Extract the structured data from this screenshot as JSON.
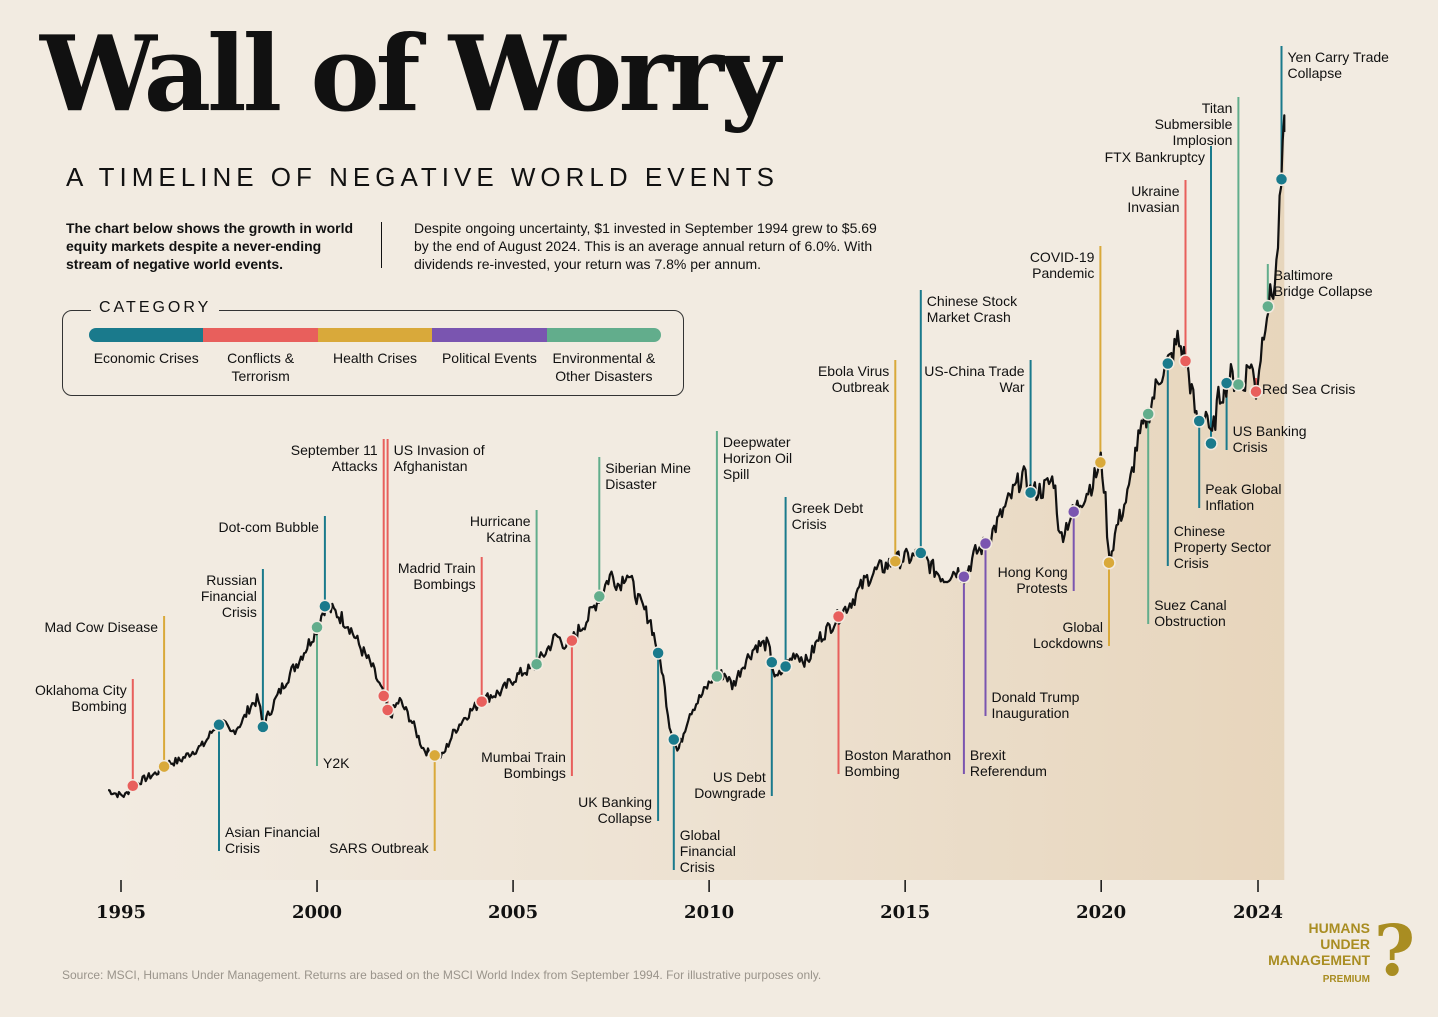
{
  "header": {
    "title": "Wall of Worry",
    "subtitle": "A TIMELINE OF NEGATIVE WORLD EVENTS",
    "intro_bold": "The chart below shows the growth in world equity markets despite a never-ending stream of negative world events.",
    "intro_text": "Despite ongoing uncertainty, $1 invested in September 1994 grew to $5.69 by the end of August 2024. This is an average annual return of 6.0%. With dividends re-invested, your return was 7.8% per annum."
  },
  "legend": {
    "title": "CATEGORY",
    "categories": [
      {
        "key": "economic",
        "label": "Economic Crises",
        "color": "#1a7a8c"
      },
      {
        "key": "conflict",
        "label": "Conflicts & Terrorism",
        "color": "#e85f5c"
      },
      {
        "key": "health",
        "label": "Health Crises",
        "color": "#d9a93a"
      },
      {
        "key": "political",
        "label": "Political Events",
        "color": "#7a55b0"
      },
      {
        "key": "environmental",
        "label": "Environmental & Other Disasters",
        "color": "#62ad8c"
      }
    ]
  },
  "chart_data": {
    "type": "line",
    "title": "Wall of Worry",
    "xlim": [
      1994.6,
      2024.7
    ],
    "xticks": [
      "1995",
      "2000",
      "2005",
      "2010",
      "2015",
      "2020",
      "2024"
    ],
    "xtick_values": [
      1995,
      2000,
      2005,
      2010,
      2015,
      2020,
      2024
    ],
    "y_axis_shown": false,
    "start_date": "September 1994",
    "end_value": 5.69,
    "series": [
      {
        "points": [
          [
            1994.67,
            1.0
          ],
          [
            1994.9,
            0.97
          ],
          [
            1995.1,
            0.96
          ],
          [
            1995.3,
            1.03
          ],
          [
            1995.6,
            1.08
          ],
          [
            1995.9,
            1.12
          ],
          [
            1996.2,
            1.19
          ],
          [
            1996.5,
            1.21
          ],
          [
            1996.8,
            1.27
          ],
          [
            1997.1,
            1.32
          ],
          [
            1997.4,
            1.45
          ],
          [
            1997.6,
            1.48
          ],
          [
            1997.8,
            1.4
          ],
          [
            1998.1,
            1.49
          ],
          [
            1998.3,
            1.6
          ],
          [
            1998.5,
            1.65
          ],
          [
            1998.62,
            1.45
          ],
          [
            1998.9,
            1.62
          ],
          [
            1999.2,
            1.78
          ],
          [
            1999.5,
            1.91
          ],
          [
            1999.8,
            2.05
          ],
          [
            2000.0,
            2.16
          ],
          [
            2000.2,
            2.31
          ],
          [
            2000.5,
            2.26
          ],
          [
            2000.8,
            2.18
          ],
          [
            2001.1,
            2.02
          ],
          [
            2001.4,
            1.88
          ],
          [
            2001.7,
            1.67
          ],
          [
            2001.85,
            1.52
          ],
          [
            2002.1,
            1.64
          ],
          [
            2002.4,
            1.5
          ],
          [
            2002.7,
            1.3
          ],
          [
            2002.9,
            1.25
          ],
          [
            2003.2,
            1.24
          ],
          [
            2003.5,
            1.42
          ],
          [
            2003.8,
            1.53
          ],
          [
            2004.1,
            1.61
          ],
          [
            2004.4,
            1.67
          ],
          [
            2004.7,
            1.7
          ],
          [
            2005.0,
            1.79
          ],
          [
            2005.3,
            1.85
          ],
          [
            2005.5,
            1.86
          ],
          [
            2005.8,
            1.97
          ],
          [
            2006.1,
            2.1
          ],
          [
            2006.4,
            2.02
          ],
          [
            2006.6,
            2.11
          ],
          [
            2006.9,
            2.22
          ],
          [
            2007.2,
            2.38
          ],
          [
            2007.5,
            2.54
          ],
          [
            2007.7,
            2.46
          ],
          [
            2007.9,
            2.56
          ],
          [
            2008.2,
            2.35
          ],
          [
            2008.5,
            2.21
          ],
          [
            2008.8,
            1.86
          ],
          [
            2009.0,
            1.45
          ],
          [
            2009.2,
            1.27
          ],
          [
            2009.5,
            1.55
          ],
          [
            2009.8,
            1.67
          ],
          [
            2010.1,
            1.8
          ],
          [
            2010.4,
            1.83
          ],
          [
            2010.6,
            1.74
          ],
          [
            2010.9,
            1.91
          ],
          [
            2011.2,
            2.03
          ],
          [
            2011.5,
            2.04
          ],
          [
            2011.7,
            1.78
          ],
          [
            2011.9,
            1.86
          ],
          [
            2012.2,
            1.98
          ],
          [
            2012.5,
            1.91
          ],
          [
            2012.8,
            2.08
          ],
          [
            2013.1,
            2.17
          ],
          [
            2013.4,
            2.27
          ],
          [
            2013.7,
            2.37
          ],
          [
            2014.0,
            2.5
          ],
          [
            2014.3,
            2.57
          ],
          [
            2014.6,
            2.61
          ],
          [
            2014.9,
            2.65
          ],
          [
            2015.2,
            2.66
          ],
          [
            2015.4,
            2.69
          ],
          [
            2015.7,
            2.58
          ],
          [
            2016.0,
            2.51
          ],
          [
            2016.3,
            2.57
          ],
          [
            2016.5,
            2.52
          ],
          [
            2016.8,
            2.69
          ],
          [
            2017.1,
            2.77
          ],
          [
            2017.4,
            2.93
          ],
          [
            2017.7,
            3.09
          ],
          [
            2018.0,
            3.25
          ],
          [
            2018.2,
            3.12
          ],
          [
            2018.5,
            3.14
          ],
          [
            2018.8,
            3.22
          ],
          [
            2018.95,
            2.79
          ],
          [
            2019.2,
            2.94
          ],
          [
            2019.5,
            3.07
          ],
          [
            2019.8,
            3.2
          ],
          [
            2020.0,
            3.35
          ],
          [
            2020.1,
            3.1
          ],
          [
            2020.2,
            2.62
          ],
          [
            2020.4,
            2.88
          ],
          [
            2020.7,
            3.12
          ],
          [
            2020.9,
            3.45
          ],
          [
            2021.2,
            3.68
          ],
          [
            2021.5,
            3.96
          ],
          [
            2021.8,
            4.08
          ],
          [
            2021.95,
            4.21
          ],
          [
            2022.2,
            4.02
          ],
          [
            2022.45,
            3.61
          ],
          [
            2022.7,
            3.71
          ],
          [
            2022.8,
            3.47
          ],
          [
            2023.0,
            3.8
          ],
          [
            2023.3,
            3.95
          ],
          [
            2023.6,
            3.86
          ],
          [
            2023.8,
            4.07
          ],
          [
            2023.95,
            3.84
          ],
          [
            2024.2,
            4.4
          ],
          [
            2024.45,
            4.63
          ],
          [
            2024.67,
            5.69
          ]
        ]
      }
    ]
  },
  "events": [
    {
      "label": "Oklahoma City Bombing",
      "category": "conflict",
      "year": 1995.3
    },
    {
      "label": "Mad Cow Disease",
      "category": "health",
      "year": 1996.1
    },
    {
      "label": "Asian Financial Crisis",
      "category": "economic",
      "year": 1997.5
    },
    {
      "label": "Russian Financial Crisis",
      "category": "economic",
      "year": 1998.62
    },
    {
      "label": "Dot-com Bubble",
      "category": "economic",
      "year": 2000.2
    },
    {
      "label": "Y2K",
      "category": "environmental",
      "year": 2000.0
    },
    {
      "label": "September 11 Attacks",
      "category": "conflict",
      "year": 2001.7
    },
    {
      "label": "US Invasion of Afghanistan",
      "category": "conflict",
      "year": 2001.8
    },
    {
      "label": "SARS Outbreak",
      "category": "health",
      "year": 2003.0
    },
    {
      "label": "Madrid Train Bombings",
      "category": "conflict",
      "year": 2004.2
    },
    {
      "label": "Hurricane Katrina",
      "category": "environmental",
      "year": 2005.6
    },
    {
      "label": "Mumbai Train Bombings",
      "category": "conflict",
      "year": 2006.5
    },
    {
      "label": "Siberian Mine Disaster",
      "category": "environmental",
      "year": 2007.2
    },
    {
      "label": "UK Banking Collapse",
      "category": "economic",
      "year": 2008.7
    },
    {
      "label": "Global Financial Crisis",
      "category": "economic",
      "year": 2009.1
    },
    {
      "label": "Deepwater Horizon Oil Spill",
      "category": "environmental",
      "year": 2010.2
    },
    {
      "label": "US Debt Downgrade",
      "category": "economic",
      "year": 2011.6
    },
    {
      "label": "Greek Debt Crisis",
      "category": "economic",
      "year": 2011.95
    },
    {
      "label": "Boston Marathon Bombing",
      "category": "conflict",
      "year": 2013.3
    },
    {
      "label": "Ebola Virus Outbreak",
      "category": "health",
      "year": 2014.75
    },
    {
      "label": "Chinese Stock Market Crash",
      "category": "economic",
      "year": 2015.4
    },
    {
      "label": "Brexit Referendum",
      "category": "political",
      "year": 2016.5
    },
    {
      "label": "Donald Trump Inauguration",
      "category": "political",
      "year": 2017.05
    },
    {
      "label": "US-China Trade War",
      "category": "economic",
      "year": 2018.2
    },
    {
      "label": "Hong Kong Protests",
      "category": "political",
      "year": 2019.3
    },
    {
      "label": "COVID-19 Pandemic",
      "category": "health",
      "year": 2019.98
    },
    {
      "label": "Global Lockdowns",
      "category": "health",
      "year": 2020.2
    },
    {
      "label": "Suez Canal Obstruction",
      "category": "environmental",
      "year": 2021.2
    },
    {
      "label": "Chinese Property Sector Crisis",
      "category": "economic",
      "year": 2021.7
    },
    {
      "label": "Ukraine Invasian",
      "category": "conflict",
      "year": 2022.15
    },
    {
      "label": "Peak Global Inflation",
      "category": "economic",
      "year": 2022.5
    },
    {
      "label": "FTX Bankruptcy",
      "category": "economic",
      "year": 2022.8
    },
    {
      "label": "US Banking Crisis",
      "category": "economic",
      "year": 2023.2
    },
    {
      "label": "Titan Submersible Implosion",
      "category": "environmental",
      "year": 2023.5
    },
    {
      "label": "Red Sea Crisis",
      "category": "conflict",
      "year": 2023.95
    },
    {
      "label": "Baltimore Bridge Collapse",
      "category": "environmental",
      "year": 2024.25
    },
    {
      "label": "Yen Carry Trade Collapse",
      "category": "economic",
      "year": 2024.6
    }
  ],
  "footer": {
    "source": "Source: MSCI, Humans Under Management. Returns are based on the MSCI World Index from September 1994. For illustrative purposes only.",
    "brand_line1": "HUMANS",
    "brand_line2": "UNDER",
    "brand_line3": "MANAGEMENT",
    "brand_premium": "PREMIUM"
  }
}
